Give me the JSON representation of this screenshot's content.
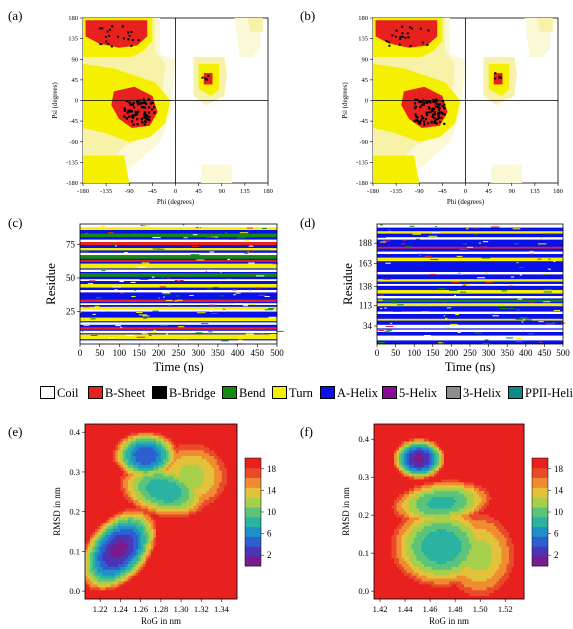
{
  "panels": {
    "a": "(a)",
    "b": "(b)",
    "c": "(c)",
    "d": "(d)",
    "e": "(e)",
    "f": "(f)"
  },
  "legend": [
    {
      "label": "Coil",
      "color": "#ffffff"
    },
    {
      "label": "B-Sheet",
      "color": "#e8201e"
    },
    {
      "label": "B-Bridge",
      "color": "#000000"
    },
    {
      "label": "Bend",
      "color": "#138a10"
    },
    {
      "label": "Turn",
      "color": "#f4f000"
    },
    {
      "label": "A-Helix",
      "color": "#0a10e8"
    },
    {
      "label": "5-Helix",
      "color": "#8a0a96"
    },
    {
      "label": "3-Helix",
      "color": "#8c8c8c"
    },
    {
      "label": "PPII-Helix",
      "color": "#0a8a8a"
    }
  ],
  "chart_data": [
    {
      "id": "a",
      "type": "scatter",
      "xlabel": "Phi (degrees)",
      "ylabel": "Psi (degrees)",
      "xlim": [
        -180,
        180
      ],
      "ylim": [
        -180,
        180
      ],
      "xticks": [
        -180,
        -135,
        -90,
        -45,
        0,
        45,
        90,
        135,
        180
      ],
      "yticks": [
        180,
        135,
        90,
        45,
        0,
        -45,
        -90,
        -135,
        -180
      ],
      "region_colors": {
        "core": "#e8201e",
        "allowed": "#f4f000",
        "generous": "#f7f2a8",
        "pale": "#fbf8d6"
      },
      "annotations": []
    },
    {
      "id": "b",
      "type": "scatter",
      "xlabel": "Phi (degrees)",
      "ylabel": "Psi (degrees)",
      "xlim": [
        -180,
        180
      ],
      "ylim": [
        -180,
        180
      ],
      "xticks": [
        -180,
        -135,
        -90,
        -45,
        0,
        45,
        90,
        135,
        180
      ],
      "yticks": [
        180,
        135,
        90,
        45,
        0,
        -45,
        -90,
        -135,
        -180
      ],
      "region_colors": {
        "core": "#e8201e",
        "allowed": "#f4f000",
        "generous": "#f7f2a8",
        "pale": "#fbf8d6"
      },
      "annotations": []
    },
    {
      "id": "c",
      "type": "heatmap",
      "xlabel": "Time (ns)",
      "ylabel": "Residue",
      "xlim": [
        0,
        500
      ],
      "xticks": [
        "0",
        "50",
        "100",
        "150",
        "200",
        "250",
        "300",
        "350",
        "400",
        "450",
        "500"
      ],
      "yticks": [
        "25",
        "50",
        "75"
      ]
    },
    {
      "id": "d",
      "type": "heatmap",
      "xlabel": "Time (ns)",
      "ylabel": "Residue",
      "xlim": [
        0,
        500
      ],
      "xticks": [
        "0",
        "50",
        "100",
        "150",
        "200",
        "250",
        "300",
        "350",
        "400",
        "450",
        "500"
      ],
      "yticks": [
        "34",
        "113",
        "138",
        "163",
        "188"
      ]
    },
    {
      "id": "e",
      "type": "heatmap",
      "xlabel": "RoG in nm",
      "ylabel": "RMSD in nm",
      "xticks": [
        "1.22",
        "1.24",
        "1.26",
        "1.28",
        "1.30",
        "1.32",
        "1.34"
      ],
      "yticks": [
        "0.0",
        "0.1",
        "0.2",
        "0.3",
        "0.4"
      ],
      "xlim": [
        1.205,
        1.355
      ],
      "ylim": [
        -0.02,
        0.42
      ],
      "colorbar": {
        "ticks": [
          "18",
          "14",
          "10",
          "6",
          "2"
        ],
        "range": [
          0,
          20
        ]
      }
    },
    {
      "id": "f",
      "type": "heatmap",
      "xlabel": "RoG in nm",
      "ylabel": "RMSD in nm",
      "xticks": [
        "1.42",
        "1.44",
        "1.46",
        "1.48",
        "1.50",
        "1.52"
      ],
      "yticks": [
        "0.0",
        "0.1",
        "0.2",
        "0.3",
        "0.4"
      ],
      "xlim": [
        1.415,
        1.535
      ],
      "ylim": [
        -0.02,
        0.44
      ],
      "colorbar": {
        "ticks": [
          "18",
          "14",
          "10",
          "6",
          "2"
        ],
        "range": [
          0,
          20
        ]
      }
    }
  ]
}
